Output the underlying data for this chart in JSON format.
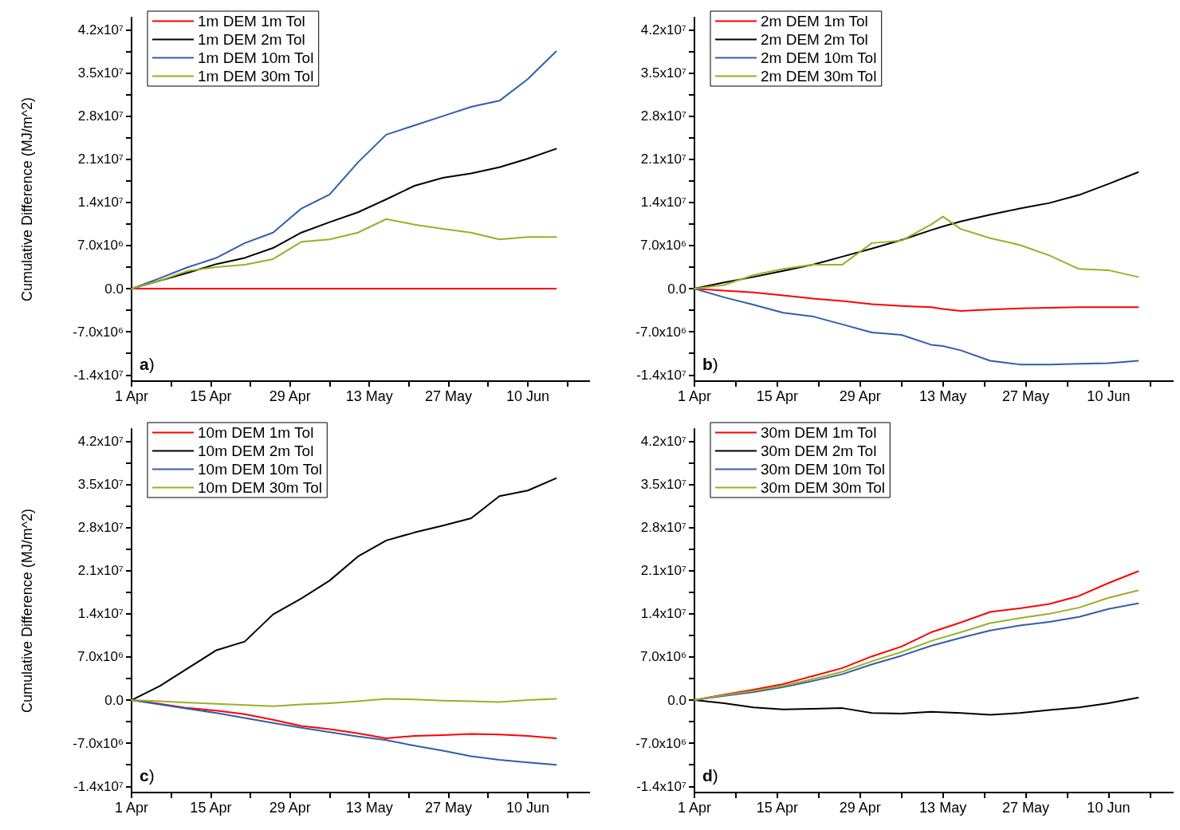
{
  "chart_data": [
    {
      "type": "line",
      "ylabel": "Cumulative Difference (MJ/m^2)",
      "annotations": [
        "a)"
      ],
      "legend": "top left",
      "grid": false,
      "x": [
        "--04-01",
        "--04-06",
        "--04-11",
        "--04-16",
        "--04-21",
        "--04-26",
        "--05-01",
        "--05-06",
        "--05-11",
        "--05-16",
        "--05-21",
        "--05-26",
        "--05-31",
        "--06-05",
        "--06-10",
        "--06-15"
      ],
      "xlim": [
        "--04-01",
        "--06-21"
      ],
      "xticks": [
        {
          "value": "--04-01",
          "label": "1 Apr"
        },
        {
          "value": "--04-08",
          "label": null
        },
        {
          "value": "--04-15",
          "label": "15 Apr"
        },
        {
          "value": "--04-22",
          "label": null
        },
        {
          "value": "--04-29",
          "label": "29 Apr"
        },
        {
          "value": "--05-06",
          "label": null
        },
        {
          "value": "--05-13",
          "label": "13 May"
        },
        {
          "value": "--05-20",
          "label": null
        },
        {
          "value": "--05-27",
          "label": "27 May"
        },
        {
          "value": "--06-03",
          "label": null
        },
        {
          "value": "--06-10",
          "label": "10 Jun"
        },
        {
          "value": "--06-17",
          "label": null
        }
      ],
      "ylim": [
        -15000000,
        44000000
      ],
      "yticks": [
        {
          "value": -14000000,
          "label": "-1.4x10⁷"
        },
        {
          "value": -10500000,
          "label": null
        },
        {
          "value": -7000000,
          "label": "-7.0x10⁶"
        },
        {
          "value": -3500000,
          "label": null
        },
        {
          "value": 0,
          "label": "0.0"
        },
        {
          "value": 3500000,
          "label": null
        },
        {
          "value": 7000000,
          "label": "7.0x10⁶"
        },
        {
          "value": 10500000,
          "label": null
        },
        {
          "value": 14000000,
          "label": "1.4x10⁷"
        },
        {
          "value": 17500000,
          "label": null
        },
        {
          "value": 21000000,
          "label": "2.1x10⁷"
        },
        {
          "value": 24500000,
          "label": null
        },
        {
          "value": 28000000,
          "label": "2.8x10⁷"
        },
        {
          "value": 31500000,
          "label": null
        },
        {
          "value": 35000000,
          "label": "3.5x10⁷"
        },
        {
          "value": 38500000,
          "label": null
        },
        {
          "value": 42000000,
          "label": "4.2x10⁷"
        }
      ],
      "series": [
        {
          "name": "1m DEM 1m Tol",
          "color": "#ff0000",
          "values": [
            0,
            0,
            0,
            0,
            0,
            0,
            0,
            0,
            0,
            0,
            0,
            0,
            0,
            0,
            0,
            0
          ]
        },
        {
          "name": "1m DEM 2m Tol",
          "color": "#000000",
          "values": [
            0,
            1300000,
            2600000,
            4000000,
            5000000,
            6600000,
            9100000,
            10800000,
            12400000,
            14500000,
            16700000,
            18000000,
            18700000,
            19700000,
            21100000,
            22700000
          ]
        },
        {
          "name": "1m DEM 10m Tol",
          "color": "#2e5fa8",
          "values": [
            0,
            1700000,
            3500000,
            5000000,
            7400000,
            9100000,
            13000000,
            15300000,
            20500000,
            25000000,
            26500000,
            28000000,
            29500000,
            30500000,
            34000000,
            38500000
          ]
        },
        {
          "name": "1m DEM 30m Tol",
          "color": "#9aaf26",
          "values": [
            0,
            1300000,
            2900000,
            3500000,
            3900000,
            4800000,
            7600000,
            8000000,
            9100000,
            11300000,
            10400000,
            9700000,
            9100000,
            8000000,
            8400000,
            8400000
          ]
        }
      ]
    },
    {
      "type": "line",
      "annotations": [
        "b)"
      ],
      "legend": "top left",
      "grid": false,
      "x": [
        "--04-01",
        "--04-06",
        "--04-11",
        "--04-16",
        "--04-21",
        "--04-26",
        "--05-01",
        "--05-06",
        "--05-11",
        "--05-13",
        "--05-16",
        "--05-21",
        "--05-26",
        "--05-31",
        "--06-05",
        "--06-10",
        "--06-15"
      ],
      "xlim": [
        "--04-01",
        "--06-21"
      ],
      "xticks": [
        {
          "value": "--04-01",
          "label": "1 Apr"
        },
        {
          "value": "--04-08",
          "label": null
        },
        {
          "value": "--04-15",
          "label": "15 Apr"
        },
        {
          "value": "--04-22",
          "label": null
        },
        {
          "value": "--04-29",
          "label": "29 Apr"
        },
        {
          "value": "--05-06",
          "label": null
        },
        {
          "value": "--05-13",
          "label": "13 May"
        },
        {
          "value": "--05-20",
          "label": null
        },
        {
          "value": "--05-27",
          "label": "27 May"
        },
        {
          "value": "--06-03",
          "label": null
        },
        {
          "value": "--06-10",
          "label": "10 Jun"
        },
        {
          "value": "--06-17",
          "label": null
        }
      ],
      "ylim": [
        -15000000,
        44000000
      ],
      "yticks": [
        {
          "value": -14000000,
          "label": "-1.4x10⁷"
        },
        {
          "value": -10500000,
          "label": null
        },
        {
          "value": -7000000,
          "label": "-7.0x10⁶"
        },
        {
          "value": -3500000,
          "label": null
        },
        {
          "value": 0,
          "label": "0.0"
        },
        {
          "value": 3500000,
          "label": null
        },
        {
          "value": 7000000,
          "label": "7.0x10⁶"
        },
        {
          "value": 10500000,
          "label": null
        },
        {
          "value": 14000000,
          "label": "1.4x10⁷"
        },
        {
          "value": 17500000,
          "label": null
        },
        {
          "value": 21000000,
          "label": "2.1x10⁷"
        },
        {
          "value": 24500000,
          "label": null
        },
        {
          "value": 28000000,
          "label": "2.8x10⁷"
        },
        {
          "value": 31500000,
          "label": null
        },
        {
          "value": 35000000,
          "label": "3.5x10⁷"
        },
        {
          "value": 38500000,
          "label": null
        },
        {
          "value": 42000000,
          "label": "4.2x10⁷"
        }
      ],
      "series": [
        {
          "name": "2m DEM 1m Tol",
          "color": "#ff0000",
          "values": [
            0,
            -300000,
            -600000,
            -1100000,
            -1600000,
            -2000000,
            -2500000,
            -2800000,
            -3000000,
            -3300000,
            -3600000,
            -3400000,
            -3200000,
            -3100000,
            -3000000,
            -3000000,
            -3000000
          ]
        },
        {
          "name": "2m DEM 2m Tol",
          "color": "#000000",
          "values": [
            0,
            1000000,
            1900000,
            2900000,
            3900000,
            5200000,
            6500000,
            7900000,
            9500000,
            10100000,
            10900000,
            12000000,
            13000000,
            13900000,
            15200000,
            17000000,
            18900000
          ]
        },
        {
          "name": "2m DEM 10m Tol",
          "color": "#2e5fa8",
          "values": [
            0,
            -1400000,
            -2600000,
            -3900000,
            -4500000,
            -5800000,
            -7100000,
            -7500000,
            -9100000,
            -9300000,
            -10000000,
            -11700000,
            -12300000,
            -12300000,
            -12200000,
            -12100000,
            -11700000
          ]
        },
        {
          "name": "2m DEM 30m Tol",
          "color": "#9aaf26",
          "values": [
            0,
            600000,
            2200000,
            3200000,
            3900000,
            3900000,
            7400000,
            7800000,
            10400000,
            11700000,
            9700000,
            8200000,
            7100000,
            5400000,
            3200000,
            3000000,
            1900000
          ]
        }
      ]
    },
    {
      "type": "line",
      "ylabel": "Cumulative Difference (MJ/m^2)",
      "annotations": [
        "c)"
      ],
      "legend": "top left",
      "grid": false,
      "x": [
        "--04-01",
        "--04-06",
        "--04-11",
        "--04-16",
        "--04-21",
        "--04-26",
        "--05-01",
        "--05-06",
        "--05-11",
        "--05-16",
        "--05-21",
        "--05-26",
        "--05-31",
        "--06-05",
        "--06-10",
        "--06-15"
      ],
      "xlim": [
        "--04-01",
        "--06-21"
      ],
      "xticks": [
        {
          "value": "--04-01",
          "label": "1 Apr"
        },
        {
          "value": "--04-08",
          "label": null
        },
        {
          "value": "--04-15",
          "label": "15 Apr"
        },
        {
          "value": "--04-22",
          "label": null
        },
        {
          "value": "--04-29",
          "label": "29 Apr"
        },
        {
          "value": "--05-06",
          "label": null
        },
        {
          "value": "--05-13",
          "label": "13 May"
        },
        {
          "value": "--05-20",
          "label": null
        },
        {
          "value": "--05-27",
          "label": "27 May"
        },
        {
          "value": "--06-03",
          "label": null
        },
        {
          "value": "--06-10",
          "label": "10 Jun"
        },
        {
          "value": "--06-17",
          "label": null
        }
      ],
      "ylim": [
        -15000000,
        44000000
      ],
      "yticks": [
        {
          "value": -14000000,
          "label": "-1.4x10⁷"
        },
        {
          "value": -10500000,
          "label": null
        },
        {
          "value": -7000000,
          "label": "-7.0x10⁶"
        },
        {
          "value": -3500000,
          "label": null
        },
        {
          "value": 0,
          "label": "0.0"
        },
        {
          "value": 3500000,
          "label": null
        },
        {
          "value": 7000000,
          "label": "7.0x10⁶"
        },
        {
          "value": 10500000,
          "label": null
        },
        {
          "value": 14000000,
          "label": "1.4x10⁷"
        },
        {
          "value": 17500000,
          "label": null
        },
        {
          "value": 21000000,
          "label": "2.1x10⁷"
        },
        {
          "value": 24500000,
          "label": null
        },
        {
          "value": 28000000,
          "label": "2.8x10⁷"
        },
        {
          "value": 31500000,
          "label": null
        },
        {
          "value": 35000000,
          "label": "3.5x10⁷"
        },
        {
          "value": 38500000,
          "label": null
        },
        {
          "value": 42000000,
          "label": "4.2x10⁷"
        }
      ],
      "series": [
        {
          "name": "10m DEM 1m Tol",
          "color": "#ff0000",
          "values": [
            0,
            -600000,
            -1300000,
            -1700000,
            -2300000,
            -3200000,
            -4200000,
            -4700000,
            -5400000,
            -6200000,
            -5800000,
            -5700000,
            -5500000,
            -5600000,
            -5800000,
            -6200000
          ]
        },
        {
          "name": "10m DEM 2m Tol",
          "color": "#000000",
          "values": [
            0,
            2300000,
            5200000,
            8100000,
            9500000,
            13900000,
            16500000,
            19400000,
            23300000,
            25900000,
            27200000,
            28300000,
            29500000,
            33100000,
            34000000,
            36000000
          ]
        },
        {
          "name": "10m DEM 10m Tol",
          "color": "#2e5fa8",
          "values": [
            0,
            -700000,
            -1400000,
            -2100000,
            -2900000,
            -3700000,
            -4500000,
            -5200000,
            -5900000,
            -6500000,
            -7400000,
            -8200000,
            -9100000,
            -9700000,
            -10100000,
            -10500000
          ]
        },
        {
          "name": "10m DEM 30m Tol",
          "color": "#9aaf26",
          "values": [
            0,
            -200000,
            -400000,
            -600000,
            -800000,
            -1000000,
            -700000,
            -500000,
            -200000,
            200000,
            100000,
            -100000,
            -200000,
            -300000,
            0,
            200000
          ]
        }
      ]
    },
    {
      "type": "line",
      "annotations": [
        "d)"
      ],
      "legend": "top left",
      "grid": false,
      "x": [
        "--04-01",
        "--04-06",
        "--04-11",
        "--04-16",
        "--04-21",
        "--04-26",
        "--05-01",
        "--05-06",
        "--05-11",
        "--05-16",
        "--05-21",
        "--05-26",
        "--05-31",
        "--06-05",
        "--06-10",
        "--06-15"
      ],
      "xlim": [
        "--04-01",
        "--06-21"
      ],
      "xticks": [
        {
          "value": "--04-01",
          "label": "1 Apr"
        },
        {
          "value": "--04-08",
          "label": null
        },
        {
          "value": "--04-15",
          "label": "15 Apr"
        },
        {
          "value": "--04-22",
          "label": null
        },
        {
          "value": "--04-29",
          "label": "29 Apr"
        },
        {
          "value": "--05-06",
          "label": null
        },
        {
          "value": "--05-13",
          "label": "13 May"
        },
        {
          "value": "--05-20",
          "label": null
        },
        {
          "value": "--05-27",
          "label": "27 May"
        },
        {
          "value": "--06-03",
          "label": null
        },
        {
          "value": "--06-10",
          "label": "10 Jun"
        },
        {
          "value": "--06-17",
          "label": null
        }
      ],
      "ylim": [
        -15000000,
        44000000
      ],
      "yticks": [
        {
          "value": -14000000,
          "label": "-1.4x10⁷"
        },
        {
          "value": -10500000,
          "label": null
        },
        {
          "value": -7000000,
          "label": "-7.0x10⁶"
        },
        {
          "value": -3500000,
          "label": null
        },
        {
          "value": 0,
          "label": "0.0"
        },
        {
          "value": 3500000,
          "label": null
        },
        {
          "value": 7000000,
          "label": "7.0x10⁶"
        },
        {
          "value": 10500000,
          "label": null
        },
        {
          "value": 14000000,
          "label": "1.4x10⁷"
        },
        {
          "value": 17500000,
          "label": null
        },
        {
          "value": 21000000,
          "label": "2.1x10⁷"
        },
        {
          "value": 24500000,
          "label": null
        },
        {
          "value": 28000000,
          "label": "2.8x10⁷"
        },
        {
          "value": 31500000,
          "label": null
        },
        {
          "value": 35000000,
          "label": "3.5x10⁷"
        },
        {
          "value": 38500000,
          "label": null
        },
        {
          "value": 42000000,
          "label": "4.2x10⁷"
        }
      ],
      "series": [
        {
          "name": "30m DEM 1m Tol",
          "color": "#ff0000",
          "values": [
            0,
            900000,
            1700000,
            2600000,
            3900000,
            5200000,
            7100000,
            8700000,
            11000000,
            12600000,
            14300000,
            14900000,
            15600000,
            16900000,
            19000000,
            20900000
          ]
        },
        {
          "name": "30m DEM 2m Tol",
          "color": "#000000",
          "values": [
            0,
            -500000,
            -1200000,
            -1500000,
            -1400000,
            -1300000,
            -2100000,
            -2200000,
            -1900000,
            -2100000,
            -2400000,
            -2100000,
            -1600000,
            -1200000,
            -500000,
            400000
          ]
        },
        {
          "name": "30m DEM 10m Tol",
          "color": "#2e5fa8",
          "values": [
            0,
            700000,
            1300000,
            2100000,
            3100000,
            4200000,
            5800000,
            7200000,
            8800000,
            10100000,
            11300000,
            12100000,
            12700000,
            13500000,
            14800000,
            15700000
          ]
        },
        {
          "name": "30m DEM 30m Tol",
          "color": "#9aaf26",
          "values": [
            0,
            800000,
            1500000,
            2300000,
            3400000,
            4600000,
            6300000,
            7800000,
            9600000,
            11000000,
            12500000,
            13300000,
            14000000,
            15000000,
            16600000,
            17800000
          ]
        }
      ]
    }
  ]
}
